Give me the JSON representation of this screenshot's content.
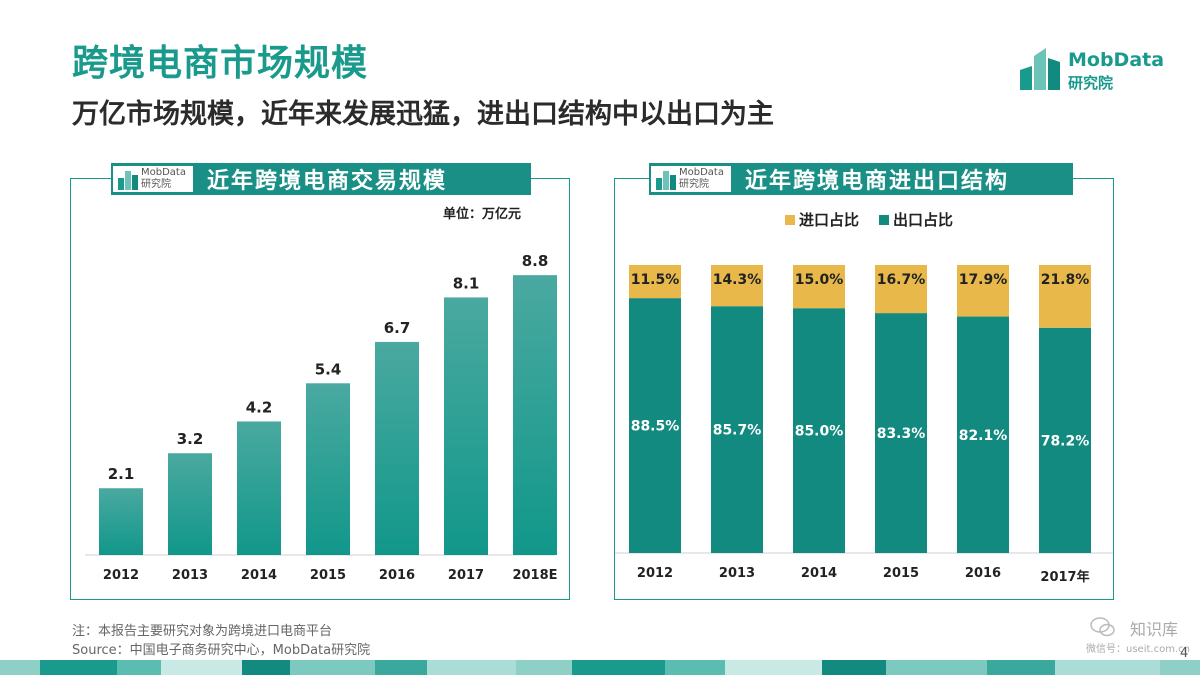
{
  "slide": {
    "title": "跨境电商市场规模",
    "subtitle": "万亿市场规模，近年来发展迅猛，进出口结构中以出口为主",
    "logo_text": "MobData",
    "logo_sub": "研究院",
    "note": "注：本报告主要研究对象为跨境进口电商平台",
    "source": "Source：中国电子商务研究中心，MobData研究院",
    "watermark_name": "知识库",
    "watermark_url": "微信号：useit.com.cn",
    "page_number": "4",
    "colors": {
      "teal": "#1a9a8c",
      "dark_teal": "#138a80",
      "gold": "#e8b84b"
    }
  },
  "panel_left": {
    "brand": "MobData研究院",
    "title": "近年跨境电商交易规模",
    "unit": "单位：万亿元"
  },
  "panel_right": {
    "brand": "MobData研究院",
    "title": "近年跨境电商进出口结构"
  },
  "chart_data": [
    {
      "type": "bar",
      "title": "近年跨境电商交易规模",
      "unit": "单位：万亿元",
      "categories": [
        "2012",
        "2013",
        "2014",
        "2015",
        "2016",
        "2017",
        "2018E"
      ],
      "values": [
        2.1,
        3.2,
        4.2,
        5.4,
        6.7,
        8.1,
        8.8
      ],
      "ylim": [
        0,
        10
      ],
      "grid": false
    },
    {
      "type": "bar",
      "stacked": true,
      "title": "近年跨境电商进出口结构",
      "categories": [
        "2012",
        "2013",
        "2014",
        "2015",
        "2016",
        "2017年"
      ],
      "series": [
        {
          "name": "出口占比",
          "values": [
            88.5,
            85.7,
            85.0,
            83.3,
            82.1,
            78.2
          ],
          "labels": [
            "88.5%",
            "85.7%",
            "85.0%",
            "83.3%",
            "82.1%",
            "78.2%"
          ],
          "color": "#138a80"
        },
        {
          "name": "进口占比",
          "values": [
            11.5,
            14.3,
            15.0,
            16.7,
            17.9,
            21.8
          ],
          "labels": [
            "11.5%",
            "14.3%",
            "15.0%",
            "16.7%",
            "17.9%",
            "21.8%"
          ],
          "color": "#e8b84b"
        }
      ],
      "legend": "top",
      "ylim": [
        0,
        100
      ]
    }
  ]
}
